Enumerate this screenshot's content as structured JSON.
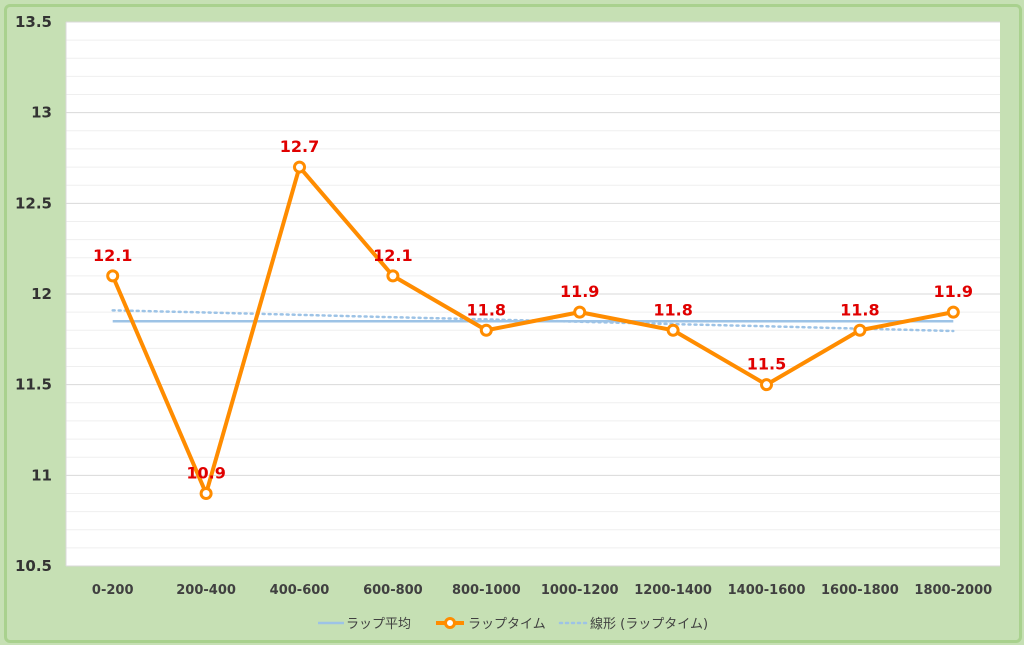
{
  "chart_data": {
    "type": "line",
    "categories": [
      "0-200",
      "200-400",
      "400-600",
      "600-800",
      "800-1000",
      "1000-1200",
      "1200-1400",
      "1400-1600",
      "1600-1800",
      "1800-2000"
    ],
    "series": [
      {
        "name": "ラップ平均",
        "values": [
          11.85,
          11.85,
          11.85,
          11.85,
          11.85,
          11.85,
          11.85,
          11.85,
          11.85,
          11.85
        ],
        "color": "#9dc3e6",
        "style": "solid"
      },
      {
        "name": "ラップタイム",
        "values": [
          12.1,
          10.9,
          12.7,
          12.1,
          11.8,
          11.9,
          11.8,
          11.5,
          11.8,
          11.9
        ],
        "color": "#ff8c00",
        "style": "line-markers"
      },
      {
        "name": "線形 (ラップタイム)",
        "values": [
          11.91,
          11.898,
          11.885,
          11.872,
          11.86,
          11.847,
          11.834,
          11.822,
          11.809,
          11.796
        ],
        "color": "#9dc3e6",
        "style": "dotted"
      }
    ],
    "data_labels": [
      "12.1",
      "10.9",
      "12.7",
      "12.1",
      "11.8",
      "11.9",
      "11.8",
      "11.5",
      "11.8",
      "11.9"
    ],
    "y_ticks": [
      "10.5",
      "11",
      "11.5",
      "12",
      "12.5",
      "13",
      "13.5"
    ],
    "ylim": [
      10.5,
      13.5
    ],
    "title": "",
    "xlabel": "",
    "ylabel": "",
    "grid": true,
    "legend_position": "bottom",
    "colors": {
      "background": "#c6e0b4",
      "plot_area": "#ffffff",
      "label": "#e00000"
    }
  }
}
